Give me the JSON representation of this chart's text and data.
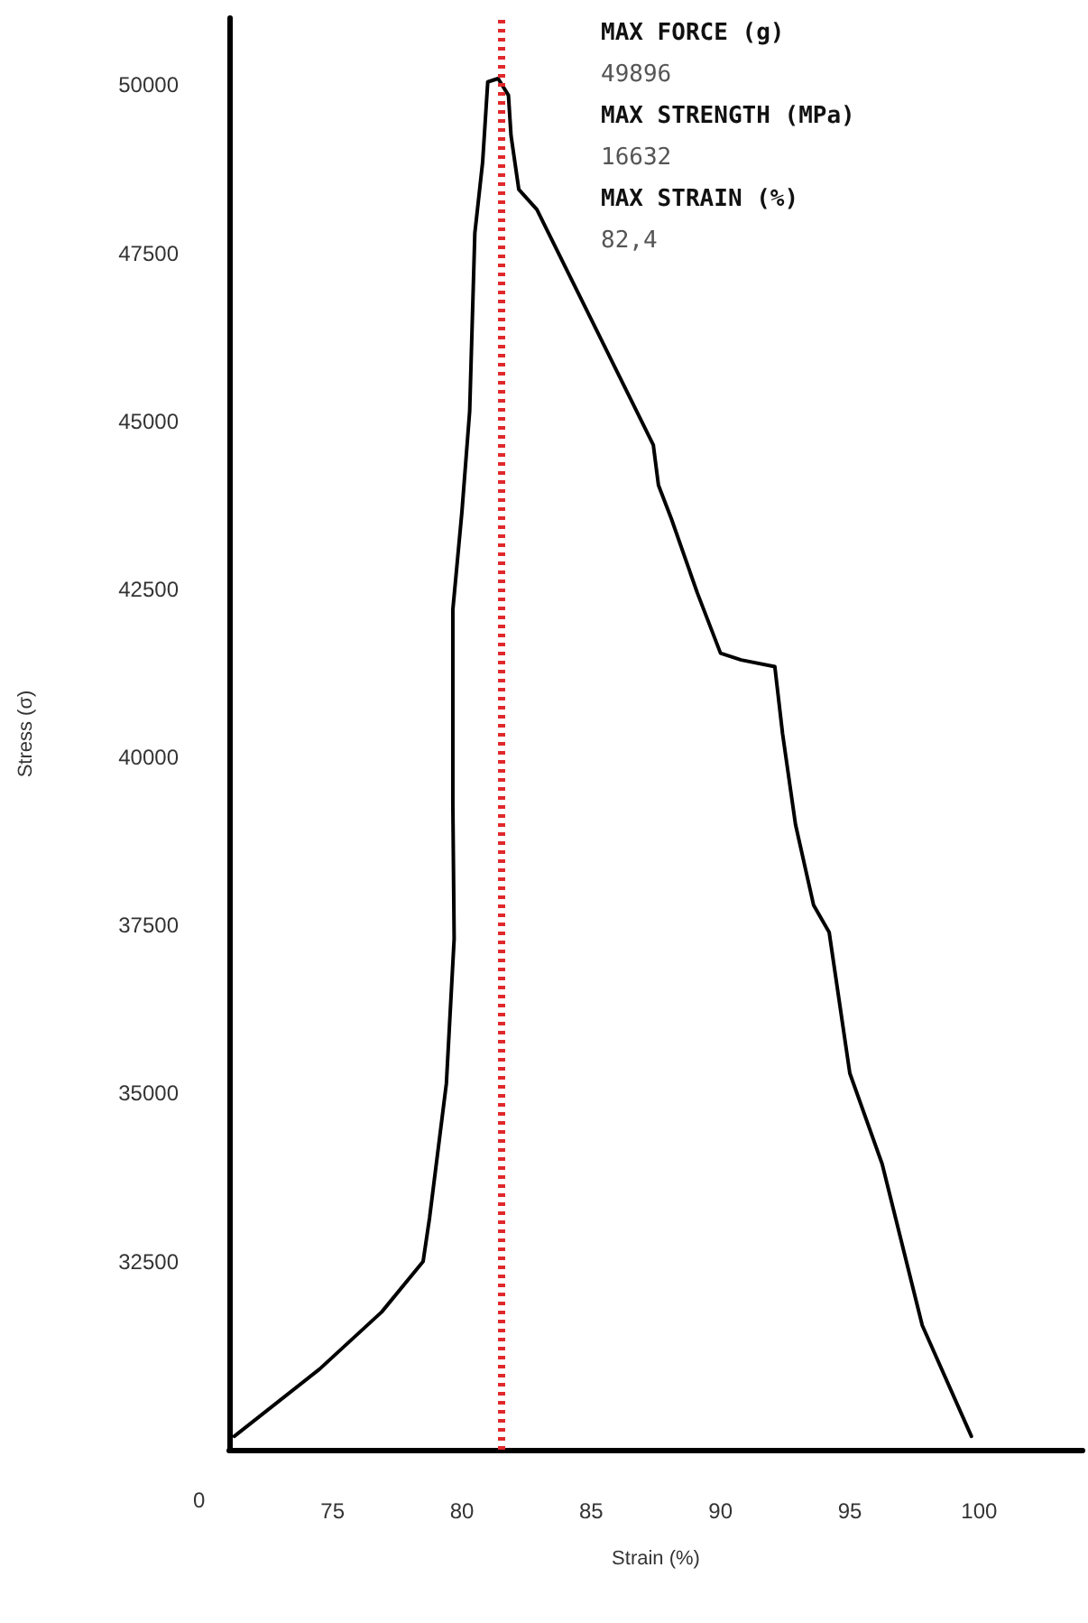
{
  "chart_data": {
    "type": "line",
    "xlabel": "Strain (%)",
    "ylabel": "Stress (σ)",
    "xlim": [
      71,
      104
    ],
    "xticks": [
      75,
      80,
      85,
      90,
      95,
      100
    ],
    "ylim": [
      29700,
      51000
    ],
    "yticks": [
      32500,
      35000,
      37500,
      40000,
      42500,
      45000,
      47500,
      50000
    ],
    "grid": false,
    "marker": "none",
    "line_style": "solid",
    "series": [
      {
        "color": "#000000",
        "x": [
          71.2,
          74.5,
          76.9,
          78.5,
          78.75,
          79.4,
          79.7,
          79.65,
          79.65,
          80.0,
          80.3,
          80.5,
          80.8,
          81.0,
          81.4,
          81.8,
          81.9,
          82.2,
          82.9,
          84.7,
          87.4,
          87.6,
          88.1,
          89.1,
          90.0,
          90.8,
          92.1,
          92.4,
          92.9,
          93.6,
          94.2,
          95.0,
          96.25,
          97.8,
          99.7
        ],
        "values": [
          29900,
          30900,
          31750,
          32500,
          33150,
          35150,
          37300,
          39300,
          42200,
          43650,
          45150,
          47800,
          48850,
          50050,
          50100,
          49850,
          49250,
          48450,
          48150,
          46750,
          44650,
          44050,
          43550,
          42450,
          41550,
          41450,
          41350,
          40350,
          39000,
          37800,
          37400,
          35300,
          33950,
          31550,
          29900
        ]
      }
    ],
    "ref_lines": [
      {
        "axis": "x",
        "value": 81.5,
        "color": "#e0282b",
        "line_style": "dotted"
      }
    ],
    "annotations": [
      "0",
      "MAX FORCE (g)",
      "49896",
      "MAX STRENGTH (MPa)",
      "16632",
      "MAX STRAIN (%)",
      "82,4"
    ]
  }
}
